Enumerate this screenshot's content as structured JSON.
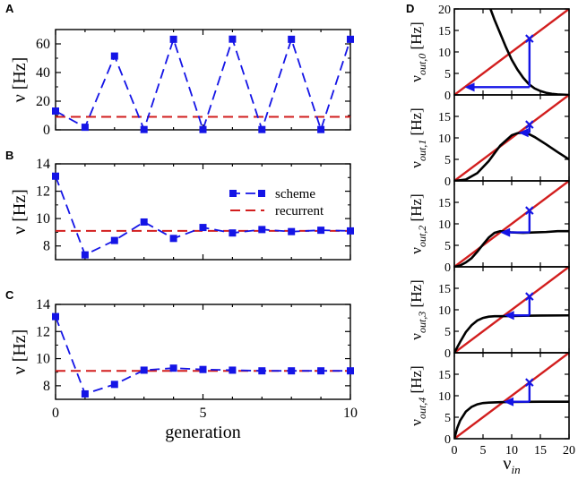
{
  "colors": {
    "scheme": "#1414e6",
    "recurrent": "#d21e1e",
    "identity": "#d21e1e",
    "curve": "#000000",
    "cobweb": "#1414e6"
  },
  "shared": {
    "xlabel": "generation",
    "x_ticks": [
      "0",
      "5",
      "10"
    ],
    "legend": {
      "scheme": "scheme",
      "recurrent": "recurrent"
    }
  },
  "chart_data": [
    {
      "panel": "A",
      "type": "line",
      "xlabel": "generation",
      "ylabel": "ν [Hz]",
      "xlim": [
        0,
        10
      ],
      "ylim": [
        0,
        70
      ],
      "y_ticks": [
        "0",
        "20",
        "40",
        "60"
      ],
      "series": [
        {
          "name": "scheme",
          "x": [
            0,
            1,
            2,
            3,
            4,
            5,
            6,
            7,
            8,
            9,
            10
          ],
          "values": [
            13.1,
            1.8,
            51.5,
            0.2,
            63.2,
            0.2,
            63.3,
            0.2,
            63.2,
            0.2,
            63.2
          ]
        },
        {
          "name": "recurrent",
          "value": 9.1
        }
      ]
    },
    {
      "panel": "B",
      "type": "line",
      "xlabel": "generation",
      "ylabel": "ν [Hz]",
      "xlim": [
        0,
        10
      ],
      "ylim": [
        7,
        14
      ],
      "y_ticks": [
        "8",
        "10",
        "12",
        "14"
      ],
      "legend_position": "top-right",
      "series": [
        {
          "name": "scheme",
          "x": [
            0,
            1,
            2,
            3,
            4,
            5,
            6,
            7,
            8,
            9,
            10
          ],
          "values": [
            13.1,
            7.35,
            8.4,
            9.75,
            8.55,
            9.35,
            8.95,
            9.2,
            9.05,
            9.15,
            9.1
          ]
        },
        {
          "name": "recurrent",
          "value": 9.1
        }
      ]
    },
    {
      "panel": "C",
      "type": "line",
      "xlabel": "generation",
      "ylabel": "ν [Hz]",
      "xlim": [
        0,
        10
      ],
      "ylim": [
        7,
        14
      ],
      "y_ticks": [
        "8",
        "10",
        "12",
        "14"
      ],
      "series": [
        {
          "name": "scheme",
          "x": [
            0,
            1,
            2,
            3,
            4,
            5,
            6,
            7,
            8,
            9,
            10
          ],
          "values": [
            13.1,
            7.4,
            8.1,
            9.15,
            9.3,
            9.2,
            9.15,
            9.1,
            9.1,
            9.1,
            9.1
          ]
        },
        {
          "name": "recurrent",
          "value": 9.1
        }
      ]
    },
    {
      "panel": "D",
      "type": "line",
      "xlabel": "ν_in",
      "xlim": [
        0,
        20
      ],
      "ylim": [
        0,
        20
      ],
      "x_ticks": [
        "0",
        "5",
        "10",
        "15",
        "20"
      ],
      "y_ticks": [
        "0",
        "5",
        "10",
        "15",
        "20"
      ],
      "cross": {
        "x": 13.1,
        "y": 13.1
      },
      "subplots": [
        {
          "ylabel_base": "ν",
          "ylabel_sub": "out,0",
          "ylabel_unit": " [Hz]",
          "cobweb_y": 1.8,
          "curve": [
            [
              6.3,
              20
            ],
            [
              7,
              17.5
            ],
            [
              8,
              14.3
            ],
            [
              9,
              11.1
            ],
            [
              10,
              8.2
            ],
            [
              11,
              5.9
            ],
            [
              12,
              4.0
            ],
            [
              13,
              2.5
            ],
            [
              14,
              1.5
            ],
            [
              15,
              0.9
            ],
            [
              16,
              0.5
            ],
            [
              17,
              0.25
            ],
            [
              18,
              0.12
            ],
            [
              20,
              0.0
            ]
          ]
        },
        {
          "ylabel_base": "ν",
          "ylabel_sub": "out,1",
          "ylabel_unit": " [Hz]",
          "cobweb_y": 11.2,
          "curve": [
            [
              0,
              0
            ],
            [
              2,
              0.3
            ],
            [
              4,
              1.8
            ],
            [
              6,
              4.6
            ],
            [
              8,
              8.2
            ],
            [
              10,
              10.6
            ],
            [
              11,
              11.1
            ],
            [
              12,
              11.2
            ],
            [
              13,
              10.9
            ],
            [
              14,
              10.2
            ],
            [
              16,
              8.5
            ],
            [
              18,
              6.7
            ],
            [
              20,
              5.0
            ]
          ]
        },
        {
          "ylabel_base": "ν",
          "ylabel_sub": "out,2",
          "ylabel_unit": " [Hz]",
          "cobweb_y": 8.0,
          "curve": [
            [
              0,
              0
            ],
            [
              1,
              0.3
            ],
            [
              2,
              1.0
            ],
            [
              3,
              2.0
            ],
            [
              4,
              3.5
            ],
            [
              5,
              5.2
            ],
            [
              6,
              6.8
            ],
            [
              7,
              7.9
            ],
            [
              8,
              8.3
            ],
            [
              9,
              8.2
            ],
            [
              10,
              8.0
            ],
            [
              12,
              7.9
            ],
            [
              14,
              8.0
            ],
            [
              16,
              8.1
            ],
            [
              18,
              8.3
            ],
            [
              20,
              8.3
            ]
          ]
        },
        {
          "ylabel_base": "ν",
          "ylabel_sub": "out,3",
          "ylabel_unit": " [Hz]",
          "cobweb_y": 8.7,
          "curve": [
            [
              0,
              0
            ],
            [
              1,
              2.5
            ],
            [
              2,
              4.8
            ],
            [
              3,
              6.4
            ],
            [
              4,
              7.5
            ],
            [
              5,
              8.1
            ],
            [
              6,
              8.4
            ],
            [
              7,
              8.5
            ],
            [
              8,
              8.5
            ],
            [
              10,
              8.55
            ],
            [
              12,
              8.6
            ],
            [
              15,
              8.65
            ],
            [
              20,
              8.7
            ]
          ]
        },
        {
          "ylabel_base": "ν",
          "ylabel_sub": "out,4",
          "ylabel_unit": " [Hz]",
          "cobweb_y": 8.6,
          "curve": [
            [
              0,
              0
            ],
            [
              0.5,
              2.5
            ],
            [
              1,
              4.2
            ],
            [
              2,
              6.3
            ],
            [
              3,
              7.4
            ],
            [
              4,
              8.0
            ],
            [
              5,
              8.3
            ],
            [
              6,
              8.4
            ],
            [
              8,
              8.5
            ],
            [
              10,
              8.55
            ],
            [
              15,
              8.6
            ],
            [
              20,
              8.6
            ]
          ]
        }
      ]
    }
  ]
}
